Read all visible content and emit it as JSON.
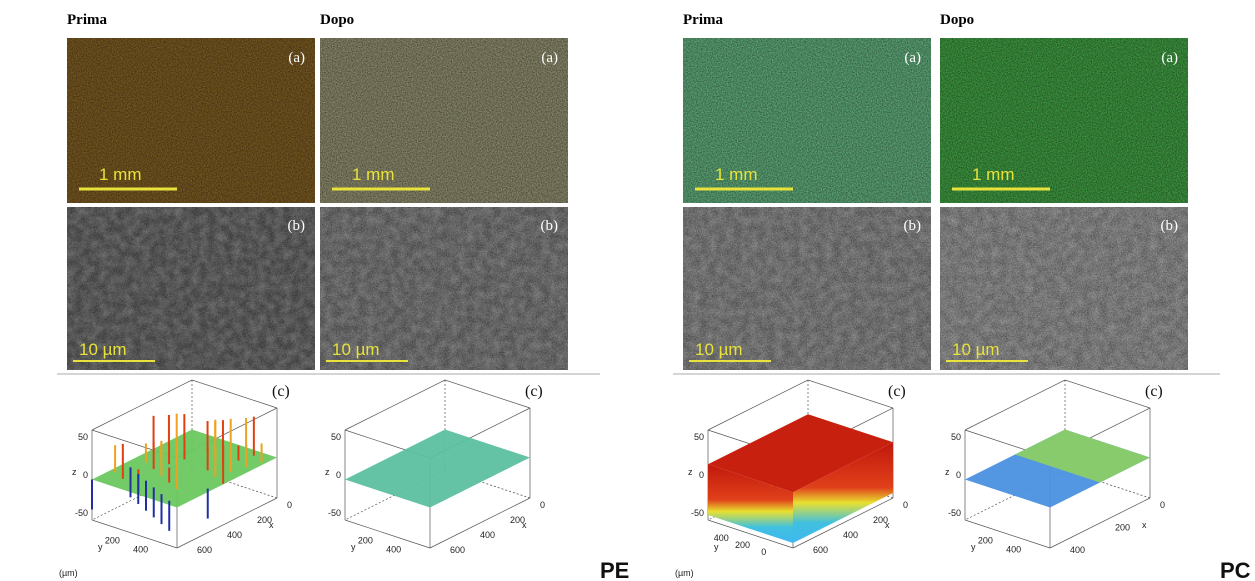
{
  "panels": [
    {
      "label": "PE",
      "unit": "(µm)",
      "columns": [
        {
          "title": "Prima",
          "a": "(a)",
          "scale_a": "1 mm",
          "b": "(b)",
          "scale_b": "10 µm",
          "c": "(c)",
          "plot": {
            "z": "z",
            "y": "y",
            "x": "x",
            "zticks": [
              50,
              0,
              -50
            ],
            "yticks": [
              200,
              400
            ],
            "xticks": [
              0,
              200,
              400,
              600
            ]
          }
        },
        {
          "title": "Dopo",
          "a": "(a)",
          "scale_a": "1 mm",
          "b": "(b)",
          "scale_b": "10 µm",
          "c": "(c)",
          "plot": {
            "z": "z",
            "y": "y",
            "x": "x",
            "zticks": [
              50,
              0,
              -50
            ],
            "yticks": [
              200,
              400
            ],
            "xticks": [
              0,
              200,
              400,
              600
            ]
          }
        }
      ]
    },
    {
      "label": "PC",
      "unit": "(µm)",
      "columns": [
        {
          "title": "Prima",
          "a": "(a)",
          "scale_a": "1 mm",
          "b": "(b)",
          "scale_b": "10 µm",
          "c": "(c)",
          "plot": {
            "z": "z",
            "y": "y",
            "x": "x",
            "zticks": [
              50,
              0,
              -50
            ],
            "yticks": [
              400,
              200,
              0
            ],
            "xticks": [
              0,
              200,
              400,
              600
            ]
          }
        },
        {
          "title": "Dopo",
          "a": "(a)",
          "scale_a": "1 mm",
          "b": "(b)",
          "scale_b": "10 µm",
          "c": "(c)",
          "plot": {
            "z": "z",
            "y": "y",
            "x": "x",
            "zticks": [
              50,
              0,
              -50
            ],
            "yticks": [
              200,
              400
            ],
            "xticks": [
              0,
              200,
              400
            ]
          }
        }
      ]
    }
  ]
}
